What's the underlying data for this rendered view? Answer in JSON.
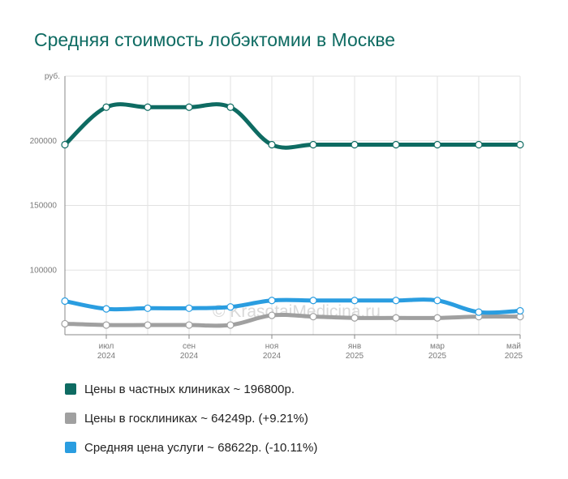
{
  "title": "Средняя стоимость лобэктомии в Москве",
  "watermark": "© KrasotaiMedicina.ru",
  "colors": {
    "private": "#0e6b62",
    "state": "#a0a0a0",
    "average": "#2a9de0",
    "grid": "#e2e2e2",
    "axis": "#888888",
    "title": "#0e6b62"
  },
  "chart_data": {
    "type": "line",
    "title": "Средняя стоимость лобэктомии в Москве",
    "ylabel": "руб.",
    "ylim": [
      50000,
      250000
    ],
    "yticks": [
      100000,
      150000,
      200000
    ],
    "ytick_labels": [
      "100000",
      "150000",
      "200000"
    ],
    "x": [
      "2024-06",
      "2024-07",
      "2024-08",
      "2024-09",
      "2024-10",
      "2024-11",
      "2024-12",
      "2025-01",
      "2025-02",
      "2025-03",
      "2025-04",
      "2025-05"
    ],
    "xtick_labels": [
      {
        "month": "июл",
        "year": "2024"
      },
      {
        "month": "сен",
        "year": "2024"
      },
      {
        "month": "ноя",
        "year": "2024"
      },
      {
        "month": "янв",
        "year": "2025"
      },
      {
        "month": "мар",
        "year": "2025"
      },
      {
        "month": "май",
        "year": "2025"
      }
    ],
    "series": [
      {
        "name": "Цены в частных клиниках",
        "key": "private",
        "values": [
          197000,
          226000,
          226000,
          226000,
          226000,
          197000,
          197000,
          197000,
          197000,
          197000,
          197000,
          197000
        ]
      },
      {
        "name": "Цены в госклиниках",
        "key": "state",
        "values": [
          58500,
          57500,
          57500,
          57500,
          57500,
          65000,
          64000,
          63000,
          63000,
          63000,
          64000,
          64000
        ]
      },
      {
        "name": "Средняя цена услуги",
        "key": "average",
        "values": [
          76000,
          70000,
          70500,
          70500,
          71500,
          76500,
          76500,
          76500,
          76500,
          76500,
          67500,
          68500
        ]
      }
    ],
    "legend": [
      {
        "key": "private",
        "label": "Цены в частных клиниках ~ 196800р."
      },
      {
        "key": "state",
        "label": "Цены в госклиниках ~ 64249р. (+9.21%)"
      },
      {
        "key": "average",
        "label": "Средняя цена услуги ~ 68622р. (-10.11%)"
      }
    ],
    "legend_position": "bottom",
    "grid": true
  }
}
